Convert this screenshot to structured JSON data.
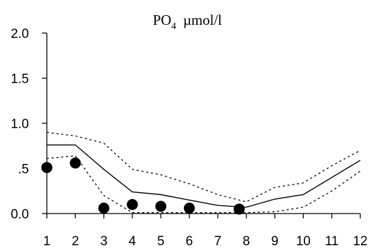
{
  "chart_data": {
    "type": "line",
    "title": {
      "main": "PO",
      "subscript": "4",
      "unit": "µmol/l"
    },
    "xlabel": "",
    "ylabel": "",
    "xlim": [
      1,
      12
    ],
    "ylim": [
      0,
      2.0
    ],
    "x_ticks": [
      1,
      2,
      3,
      4,
      5,
      6,
      7,
      8,
      9,
      10,
      11,
      12
    ],
    "y_ticks": [
      {
        "value": 0.0,
        "label": "0.0"
      },
      {
        "value": 0.5,
        "label": ".5"
      },
      {
        "value": 1.0,
        "label": "1.0"
      },
      {
        "value": 1.5,
        "label": "1.5"
      },
      {
        "value": 2.0,
        "label": "2.0"
      }
    ],
    "grid": false,
    "series": [
      {
        "style": "solid",
        "x": [
          1,
          2,
          3,
          4,
          5,
          6,
          7,
          8,
          9,
          10,
          11,
          12
        ],
        "y": [
          0.76,
          0.76,
          0.49,
          0.24,
          0.21,
          0.15,
          0.09,
          0.07,
          0.16,
          0.21,
          0.4,
          0.59
        ]
      },
      {
        "style": "dotted",
        "x": [
          1,
          2,
          3,
          4,
          5,
          6,
          7,
          8,
          9,
          10,
          11,
          12
        ],
        "y": [
          0.9,
          0.86,
          0.78,
          0.49,
          0.43,
          0.33,
          0.21,
          0.13,
          0.29,
          0.34,
          0.53,
          0.7
        ]
      },
      {
        "style": "dotted",
        "x": [
          1,
          2,
          3,
          4,
          5,
          6,
          7,
          8,
          9,
          10,
          11,
          12
        ],
        "y": [
          0.61,
          0.64,
          0.2,
          0.01,
          0.01,
          0.01,
          0.01,
          0.01,
          0.02,
          0.07,
          0.25,
          0.47
        ]
      },
      {
        "style": "markers",
        "x": [
          1,
          2,
          3,
          4,
          5,
          6,
          7.75
        ],
        "y": [
          0.51,
          0.56,
          0.06,
          0.1,
          0.08,
          0.06,
          0.05
        ]
      }
    ]
  }
}
